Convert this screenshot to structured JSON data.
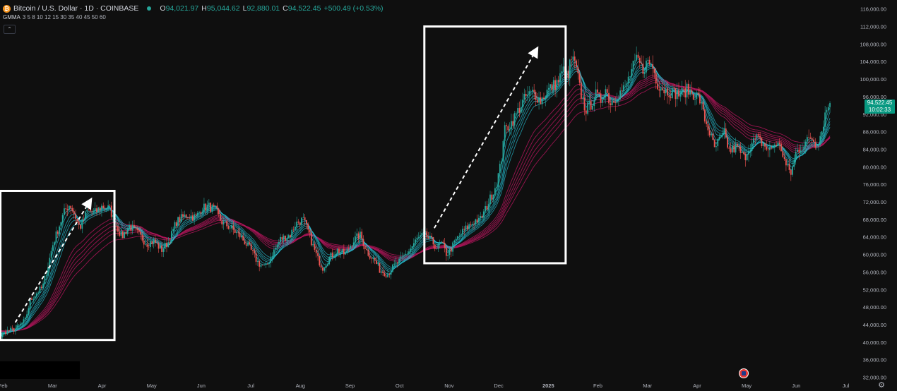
{
  "header": {
    "icon_letter": "₿",
    "title": "Bitcoin / U.S. Dollar · 1D · COINBASE",
    "open_label": "O",
    "open": "94,021.97",
    "high_label": "H",
    "high": "95,044.62",
    "low_label": "L",
    "low": "92,880.01",
    "close_label": "C",
    "close": "94,522.45",
    "change": "+500.49 (+0.53%)"
  },
  "indicator": {
    "name": "GMMA",
    "params": "3 5 8 10 12 15 30 35 40 45 50 60"
  },
  "icons": [
    "bitcoin-icon",
    "status-dot-icon",
    "chevron-up-icon",
    "flag-icon",
    "gear-icon"
  ],
  "colors": {
    "up": "#26a69a",
    "down": "#ef5350",
    "short_ema": "#26c6da",
    "long_ema": "#b0155a",
    "background": "#0f0f0f",
    "annotation": "#ffffff",
    "price_tag": "#089981"
  },
  "price_tag": {
    "price": "94,522.45",
    "countdown": "10:02:33"
  },
  "chart_data": {
    "type": "candlestick",
    "title": "Bitcoin / U.S. Dollar · 1D · COINBASE",
    "y_ticks": [
      "32,000.00",
      "36,000.00",
      "40,000.00",
      "44,000.00",
      "48,000.00",
      "52,000.00",
      "56,000.00",
      "60,000.00",
      "64,000.00",
      "68,000.00",
      "72,000.00",
      "76,000.00",
      "80,000.00",
      "84,000.00",
      "88,000.00",
      "92,000.00",
      "96,000.00",
      "100,000.00",
      "104,000.00",
      "108,000.00",
      "112,000.00",
      "116,000.00"
    ],
    "ylim": [
      32000,
      116000
    ],
    "x_ticks": [
      {
        "label": "Feb",
        "x": 0.5
      },
      {
        "label": "Mar",
        "x": 1.5
      },
      {
        "label": "Apr",
        "x": 2.5
      },
      {
        "label": "May",
        "x": 3.5
      },
      {
        "label": "Jun",
        "x": 4.5
      },
      {
        "label": "Jul",
        "x": 5.5
      },
      {
        "label": "Aug",
        "x": 6.5
      },
      {
        "label": "Sep",
        "x": 7.5
      },
      {
        "label": "Oct",
        "x": 8.5
      },
      {
        "label": "Nov",
        "x": 9.5
      },
      {
        "label": "Dec",
        "x": 10.5
      },
      {
        "label": "2025",
        "x": 11.5
      },
      {
        "label": "Feb",
        "x": 12.5
      },
      {
        "label": "Mar",
        "x": 13.5
      },
      {
        "label": "Apr",
        "x": 14.5
      },
      {
        "label": "May",
        "x": 15.5
      },
      {
        "label": "Jun",
        "x": 16.5
      },
      {
        "label": "Jul",
        "x": 17.5
      }
    ],
    "x_range": [
      0,
      18
    ],
    "close_path": [
      [
        0.0,
        43500
      ],
      [
        0.3,
        42000
      ],
      [
        0.45,
        41200
      ],
      [
        0.55,
        42400
      ],
      [
        0.75,
        43000
      ],
      [
        0.95,
        45000
      ],
      [
        1.05,
        49500
      ],
      [
        1.2,
        51500
      ],
      [
        1.3,
        52500
      ],
      [
        1.4,
        57000
      ],
      [
        1.5,
        62000
      ],
      [
        1.65,
        67000
      ],
      [
        1.75,
        70000
      ],
      [
        1.85,
        71500
      ],
      [
        1.95,
        69000
      ],
      [
        2.05,
        66000
      ],
      [
        2.2,
        70000
      ],
      [
        2.35,
        69500
      ],
      [
        2.5,
        71000
      ],
      [
        2.65,
        70500
      ],
      [
        2.75,
        67500
      ],
      [
        2.9,
        64000
      ],
      [
        3.05,
        66500
      ],
      [
        3.2,
        65000
      ],
      [
        3.4,
        62500
      ],
      [
        3.55,
        63000
      ],
      [
        3.7,
        61000
      ],
      [
        3.85,
        63000
      ],
      [
        4.0,
        67500
      ],
      [
        4.2,
        69000
      ],
      [
        4.4,
        68500
      ],
      [
        4.5,
        70500
      ],
      [
        4.65,
        71000
      ],
      [
        4.8,
        70000
      ],
      [
        4.9,
        67500
      ],
      [
        5.1,
        66000
      ],
      [
        5.3,
        64000
      ],
      [
        5.5,
        61000
      ],
      [
        5.65,
        58000
      ],
      [
        5.8,
        57000
      ],
      [
        5.95,
        60500
      ],
      [
        6.1,
        63500
      ],
      [
        6.3,
        64500
      ],
      [
        6.4,
        67000
      ],
      [
        6.55,
        68000
      ],
      [
        6.65,
        65500
      ],
      [
        6.75,
        62000
      ],
      [
        6.85,
        59000
      ],
      [
        6.95,
        57000
      ],
      [
        7.1,
        59500
      ],
      [
        7.25,
        61000
      ],
      [
        7.4,
        60000
      ],
      [
        7.55,
        63000
      ],
      [
        7.7,
        64500
      ],
      [
        7.85,
        60500
      ],
      [
        8.0,
        58500
      ],
      [
        8.1,
        56500
      ],
      [
        8.25,
        55500
      ],
      [
        8.4,
        57500
      ],
      [
        8.55,
        59000
      ],
      [
        8.7,
        61000
      ],
      [
        8.85,
        63500
      ],
      [
        9.0,
        64500
      ],
      [
        9.15,
        63000
      ],
      [
        9.25,
        61500
      ],
      [
        9.35,
        62500
      ],
      [
        9.45,
        60000
      ],
      [
        9.55,
        61500
      ],
      [
        9.65,
        63500
      ],
      [
        9.8,
        65500
      ],
      [
        9.95,
        67000
      ],
      [
        10.05,
        68000
      ],
      [
        10.1,
        67500
      ],
      [
        10.2,
        69500
      ],
      [
        10.3,
        72000
      ],
      [
        10.45,
        76000
      ],
      [
        10.55,
        81000
      ],
      [
        10.6,
        88000
      ],
      [
        10.75,
        90000
      ],
      [
        10.85,
        92000
      ],
      [
        10.95,
        94000
      ],
      [
        11.05,
        96000
      ],
      [
        11.2,
        97000
      ],
      [
        11.35,
        95000
      ],
      [
        11.45,
        97000
      ],
      [
        11.55,
        98000
      ],
      [
        11.7,
        99500
      ],
      [
        11.8,
        102000
      ],
      [
        11.9,
        100000
      ],
      [
        11.95,
        105000
      ],
      [
        12.05,
        103000
      ],
      [
        12.15,
        97000
      ],
      [
        12.25,
        93000
      ],
      [
        12.35,
        94000
      ],
      [
        12.45,
        96500
      ],
      [
        12.55,
        95000
      ],
      [
        12.65,
        98000
      ],
      [
        12.75,
        94500
      ],
      [
        12.9,
        96500
      ],
      [
        13.05,
        98000
      ],
      [
        13.2,
        102500
      ],
      [
        13.3,
        104500
      ],
      [
        13.4,
        102000
      ],
      [
        13.5,
        104000
      ],
      [
        13.6,
        103000
      ],
      [
        13.7,
        99000
      ],
      [
        13.85,
        97500
      ],
      [
        14.0,
        97000
      ],
      [
        14.15,
        96500
      ],
      [
        14.3,
        97500
      ],
      [
        14.45,
        96500
      ],
      [
        14.55,
        95500
      ],
      [
        14.65,
        91000
      ],
      [
        14.75,
        88000
      ],
      [
        14.85,
        84000
      ],
      [
        14.95,
        86000
      ],
      [
        15.05,
        87500
      ],
      [
        15.15,
        83500
      ],
      [
        15.3,
        84500
      ],
      [
        15.45,
        82000
      ],
      [
        15.55,
        84500
      ],
      [
        15.7,
        86500
      ],
      [
        15.85,
        85000
      ],
      [
        15.95,
        83500
      ],
      [
        16.1,
        85500
      ],
      [
        16.2,
        84000
      ],
      [
        16.3,
        80000
      ],
      [
        16.4,
        78500
      ],
      [
        16.5,
        83500
      ],
      [
        16.6,
        84500
      ],
      [
        16.7,
        85500
      ],
      [
        16.8,
        87000
      ],
      [
        16.9,
        85000
      ],
      [
        17.0,
        87500
      ],
      [
        17.1,
        93000
      ],
      [
        17.2,
        94522
      ]
    ],
    "gmma_short_periods": [
      3,
      5,
      8,
      10,
      12,
      15
    ],
    "gmma_long_periods": [
      30,
      35,
      40,
      45,
      50,
      60
    ],
    "annotations": [
      {
        "type": "box",
        "x": [
          0.45,
          2.75
        ],
        "y": [
          40500,
          74500
        ]
      },
      {
        "type": "arrow",
        "from": [
          0.75,
          44500
        ],
        "to": [
          2.3,
          73000
        ]
      },
      {
        "type": "box",
        "x": [
          9.0,
          11.85
        ],
        "y": [
          58000,
          112000
        ]
      },
      {
        "type": "arrow",
        "from": [
          9.2,
          66000
        ],
        "to": [
          11.3,
          107500
        ]
      }
    ]
  }
}
